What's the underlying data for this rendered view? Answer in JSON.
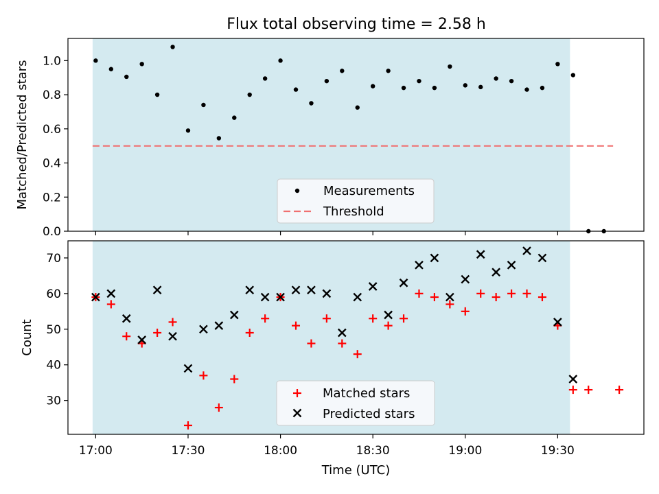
{
  "title": "Flux total observing time = 2.58 h",
  "colors": {
    "shade": "#d4eaf0",
    "measurement": "#000000",
    "threshold": "#f07070",
    "matched": "#ff0000",
    "predicted": "#000000"
  },
  "chart_data": [
    {
      "type": "scatter",
      "ylabel": "Matched/Predicted stars",
      "ylim": [
        0,
        1.13
      ],
      "yticks": [
        0.0,
        0.2,
        0.4,
        0.6,
        0.8,
        1.0
      ],
      "ytick_labels": [
        "0.0",
        "0.2",
        "0.4",
        "0.6",
        "0.8",
        "1.0"
      ],
      "shaded_region": {
        "x_start_min": -1,
        "x_end_min": 154
      },
      "threshold": {
        "value": 0.5,
        "x_start_min": -1,
        "x_end_min": 168
      },
      "legend": {
        "placement": "lower-center",
        "entries": [
          "Measurements",
          "Threshold"
        ]
      },
      "series": [
        {
          "name": "Measurements",
          "x_min": [
            0,
            5,
            10,
            15,
            20,
            25,
            30,
            35,
            40,
            45,
            50,
            55,
            60,
            65,
            70,
            75,
            80,
            85,
            90,
            95,
            100,
            105,
            110,
            115,
            120,
            125,
            130,
            135,
            140,
            145,
            150,
            155,
            160,
            165
          ],
          "y": [
            1.0,
            0.95,
            0.905,
            0.98,
            0.8,
            1.08,
            0.59,
            0.74,
            0.545,
            0.665,
            0.8,
            0.895,
            1.0,
            0.83,
            0.75,
            0.88,
            0.94,
            0.725,
            0.85,
            0.94,
            0.84,
            0.88,
            0.84,
            0.965,
            0.855,
            0.845,
            0.895,
            0.88,
            0.83,
            0.84,
            0.98,
            0.915,
            0.0,
            0.0
          ]
        }
      ]
    },
    {
      "type": "scatter",
      "ylabel": "Count",
      "xlabel": "Time (UTC)",
      "ylim": [
        20.5,
        74.8
      ],
      "yticks": [
        30,
        40,
        50,
        60,
        70
      ],
      "ytick_labels": [
        "30",
        "40",
        "50",
        "60",
        "70"
      ],
      "xticks_min": [
        0,
        30,
        60,
        90,
        120,
        150
      ],
      "xtick_labels": [
        "17:00",
        "17:30",
        "18:00",
        "18:30",
        "19:00",
        "19:30"
      ],
      "xlim_min": [
        -9,
        178
      ],
      "shaded_region": {
        "x_start_min": -1,
        "x_end_min": 154
      },
      "legend": {
        "placement": "lower-center",
        "entries": [
          "Matched stars",
          "Predicted stars"
        ]
      },
      "series": [
        {
          "name": "Matched stars",
          "x_min": [
            0,
            5,
            10,
            15,
            20,
            25,
            30,
            35,
            40,
            45,
            50,
            55,
            60,
            65,
            70,
            75,
            80,
            85,
            90,
            95,
            100,
            105,
            110,
            115,
            120,
            125,
            130,
            135,
            140,
            145,
            150,
            155,
            160,
            170
          ],
          "y": [
            59,
            57,
            48,
            46,
            49,
            52,
            23,
            37,
            28,
            36,
            49,
            53,
            59,
            51,
            46,
            53,
            46,
            43,
            53,
            51,
            53,
            60,
            59,
            57,
            55,
            60,
            59,
            60,
            60,
            59,
            51,
            33,
            33,
            33
          ]
        },
        {
          "name": "Predicted stars",
          "x_min": [
            0,
            5,
            10,
            15,
            20,
            25,
            30,
            35,
            40,
            45,
            50,
            55,
            60,
            65,
            70,
            75,
            80,
            85,
            90,
            95,
            100,
            105,
            110,
            115,
            120,
            125,
            130,
            135,
            140,
            145,
            150,
            155
          ],
          "y": [
            59,
            60,
            53,
            47,
            61,
            48,
            39,
            50,
            51,
            54,
            61,
            59,
            59,
            61,
            61,
            60,
            49,
            59,
            62,
            54,
            63,
            68,
            70,
            59,
            64,
            71,
            66,
            68,
            72,
            70,
            52,
            36
          ]
        }
      ]
    }
  ]
}
